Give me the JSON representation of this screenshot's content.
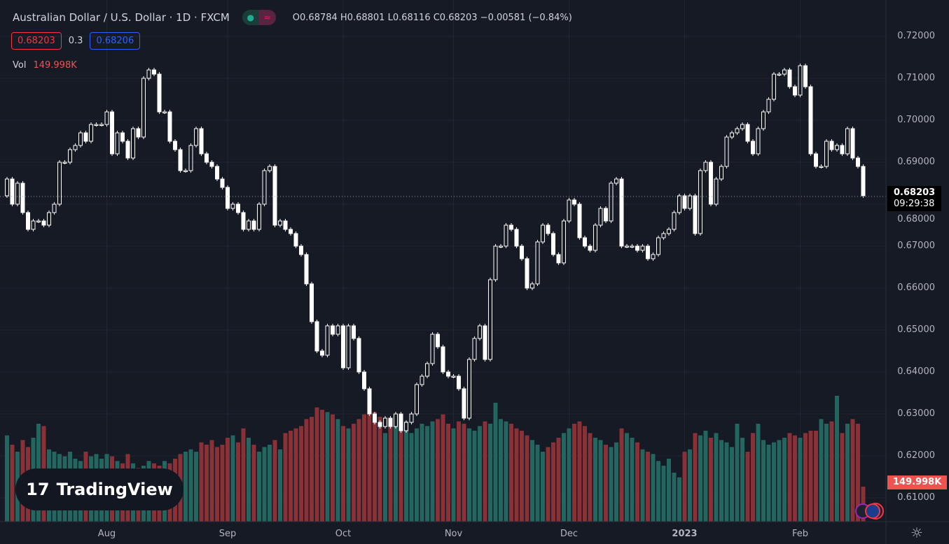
{
  "header": {
    "title": "Australian Dollar / U.S. Dollar · 1D · FXCM",
    "ohlc": "O0.68784 H0.68801 L0.68116 C0.68203 −0.00581 (−0.84%)",
    "bid": "0.68203",
    "spread": "0.3",
    "ask": "0.68206",
    "vol_label": "Vol",
    "vol_value": "149.998K"
  },
  "last_price": {
    "price": "0.68203",
    "countdown": "09:29:38",
    "volume": "149.998K"
  },
  "logo": "TradingView",
  "colors": {
    "up_vol": "#22665f",
    "down_vol": "#8a3138",
    "candle": "#ffffff",
    "bid": "#f23645",
    "ask": "#2962ff"
  },
  "chart_data": {
    "type": "candlestick",
    "title": "Australian Dollar / U.S. Dollar · 1D · FXCM",
    "ylim": [
      0.605,
      0.7235
    ],
    "y_ticks": [
      "0.72000",
      "0.71000",
      "0.70000",
      "0.69000",
      "0.68000",
      "0.67000",
      "0.66000",
      "0.65000",
      "0.64000",
      "0.63000",
      "0.62000",
      "0.61000"
    ],
    "x_ticks": [
      {
        "label": "Aug",
        "bar": 19
      },
      {
        "label": "Sep",
        "bar": 42
      },
      {
        "label": "Oct",
        "bar": 64
      },
      {
        "label": "Nov",
        "bar": 85
      },
      {
        "label": "Dec",
        "bar": 107
      },
      {
        "label": "2023",
        "bar": 129
      },
      {
        "label": "Feb",
        "bar": 151
      }
    ],
    "first_open": 0.682,
    "closes": [
      0.686,
      0.68,
      0.685,
      0.678,
      0.674,
      0.676,
      0.676,
      0.675,
      0.678,
      0.68,
      0.69,
      0.69,
      0.693,
      0.694,
      0.697,
      0.695,
      0.699,
      0.699,
      0.699,
      0.702,
      0.692,
      0.697,
      0.695,
      0.691,
      0.698,
      0.696,
      0.71,
      0.712,
      0.711,
      0.702,
      0.702,
      0.695,
      0.693,
      0.688,
      0.688,
      0.694,
      0.698,
      0.692,
      0.69,
      0.689,
      0.686,
      0.684,
      0.679,
      0.68,
      0.678,
      0.674,
      0.676,
      0.674,
      0.68,
      0.688,
      0.689,
      0.675,
      0.676,
      0.674,
      0.673,
      0.67,
      0.668,
      0.661,
      0.652,
      0.645,
      0.644,
      0.651,
      0.649,
      0.651,
      0.641,
      0.651,
      0.648,
      0.64,
      0.636,
      0.63,
      0.628,
      0.627,
      0.629,
      0.627,
      0.63,
      0.626,
      0.628,
      0.63,
      0.637,
      0.639,
      0.642,
      0.649,
      0.646,
      0.64,
      0.639,
      0.639,
      0.636,
      0.629,
      0.643,
      0.648,
      0.651,
      0.643,
      0.662,
      0.67,
      0.67,
      0.675,
      0.674,
      0.67,
      0.667,
      0.66,
      0.661,
      0.671,
      0.675,
      0.673,
      0.668,
      0.666,
      0.676,
      0.681,
      0.68,
      0.672,
      0.67,
      0.669,
      0.675,
      0.679,
      0.676,
      0.685,
      0.686,
      0.67,
      0.67,
      0.67,
      0.669,
      0.67,
      0.667,
      0.668,
      0.672,
      0.673,
      0.674,
      0.678,
      0.682,
      0.679,
      0.682,
      0.673,
      0.688,
      0.69,
      0.68,
      0.686,
      0.689,
      0.696,
      0.697,
      0.698,
      0.699,
      0.695,
      0.692,
      0.698,
      0.702,
      0.705,
      0.711,
      0.711,
      0.712,
      0.708,
      0.706,
      0.713,
      0.708,
      0.692,
      0.689,
      0.689,
      0.695,
      0.693,
      0.694,
      0.692,
      0.698,
      0.691,
      0.689,
      0.682
    ],
    "volumes_k": [
      370,
      330,
      300,
      350,
      320,
      360,
      420,
      410,
      310,
      300,
      290,
      280,
      300,
      270,
      260,
      300,
      280,
      290,
      270,
      290,
      280,
      260,
      250,
      290,
      250,
      230,
      240,
      260,
      250,
      240,
      260,
      250,
      270,
      290,
      300,
      310,
      300,
      340,
      330,
      350,
      320,
      330,
      360,
      370,
      340,
      400,
      360,
      330,
      300,
      320,
      330,
      350,
      310,
      380,
      390,
      400,
      410,
      440,
      450,
      490,
      480,
      470,
      460,
      440,
      410,
      400,
      420,
      440,
      460,
      480,
      470,
      450,
      380,
      420,
      450,
      460,
      430,
      380,
      400,
      420,
      410,
      430,
      440,
      460,
      420,
      400,
      430,
      420,
      400,
      390,
      410,
      430,
      420,
      510,
      440,
      430,
      420,
      400,
      390,
      370,
      350,
      330,
      300,
      320,
      340,
      360,
      380,
      400,
      420,
      430,
      410,
      380,
      360,
      350,
      330,
      320,
      340,
      400,
      380,
      360,
      340,
      310,
      300,
      290,
      260,
      240,
      270,
      210,
      190,
      300,
      310,
      380,
      370,
      390,
      360,
      380,
      350,
      340,
      320,
      420,
      360,
      300,
      380,
      420,
      350,
      330,
      340,
      350,
      360,
      380,
      370,
      360,
      380,
      390,
      390,
      440,
      420,
      430,
      540,
      380,
      420,
      440,
      420,
      150
    ]
  }
}
